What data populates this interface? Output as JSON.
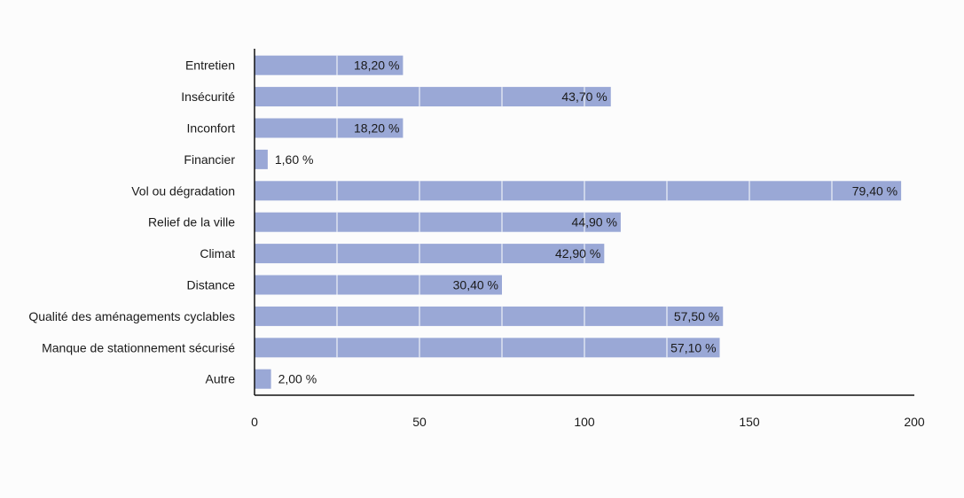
{
  "chart_data": {
    "type": "bar",
    "orientation": "horizontal",
    "title": "",
    "xlabel": "",
    "ylabel": "",
    "categories": [
      "Entretien",
      "Insécurité",
      "Inconfort",
      "Financier",
      "Vol ou dégradation",
      "Relief de la ville",
      "Climat",
      "Distance",
      "Qualité des aménagements cyclables",
      "Manque de stationnement sécurisé",
      "Autre"
    ],
    "values": [
      45,
      108,
      45,
      4,
      196,
      111,
      106,
      75,
      142,
      141,
      5
    ],
    "data_labels": [
      "18,20 %",
      "43,70 %",
      "18,20 %",
      "1,60 %",
      "79,40 %",
      "44,90 %",
      "42,90 %",
      "30,40 %",
      "57,50 %",
      "57,10 %",
      "2,00 %"
    ],
    "xlim": [
      0,
      200
    ],
    "x_ticks": [
      0,
      50,
      100,
      150,
      200
    ],
    "grid": true,
    "legend": "none",
    "colors": {
      "bar": "#9aa8d6",
      "grid": "#ffffff",
      "axis": "#111111"
    }
  }
}
